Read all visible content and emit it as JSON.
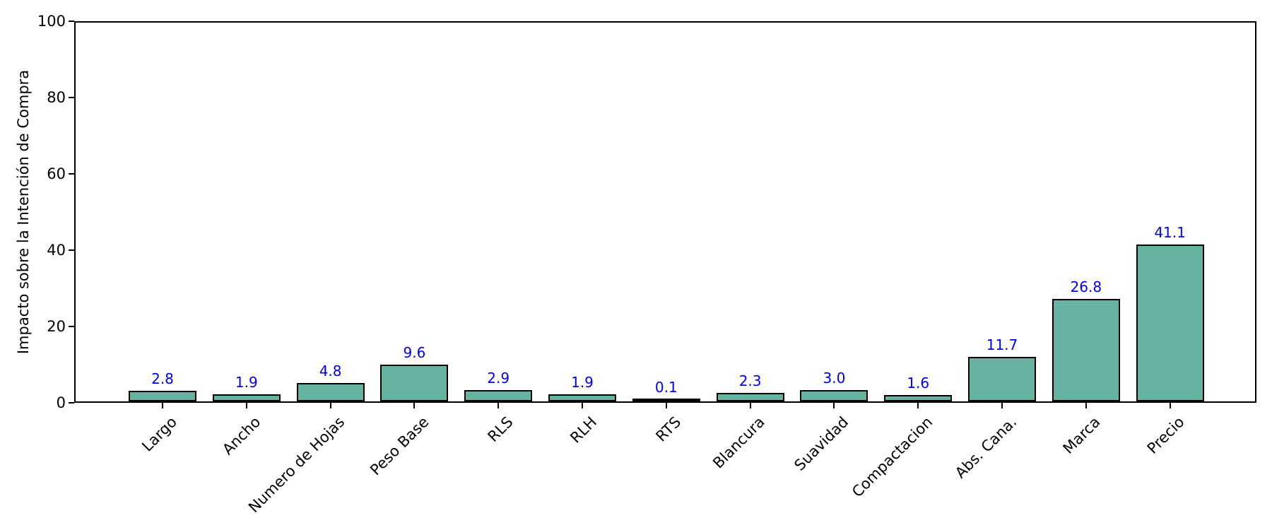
{
  "chart_data": {
    "type": "bar",
    "title": "",
    "xlabel": "",
    "ylabel": "Impacto sobre la Intención de Compra",
    "categories": [
      "Largo",
      "Ancho",
      "Numero de Hojas",
      "Peso Base",
      "RLS",
      "RLH",
      "RTS",
      "Blancura",
      "Suavidad",
      "Compactacion",
      "Abs. Cana.",
      "Marca",
      "Precio"
    ],
    "values": [
      2.8,
      1.9,
      4.8,
      9.6,
      2.9,
      1.9,
      0.1,
      2.3,
      3.0,
      1.6,
      11.7,
      26.8,
      41.1
    ],
    "value_labels": [
      "2.8",
      "1.9",
      "4.8",
      "9.6",
      "2.9",
      "1.9",
      "0.1",
      "2.3",
      "3.0",
      "1.6",
      "11.7",
      "26.8",
      "41.1"
    ],
    "ylim": [
      0,
      100
    ],
    "yticks": [
      0,
      20,
      40,
      60,
      80,
      100
    ],
    "ytick_labels": [
      "0",
      "20",
      "40",
      "60",
      "80",
      "100"
    ],
    "x_tick_rotation_deg": 45,
    "grid": false,
    "legend": "none",
    "colors": {
      "bar_fill": "#67b3a1",
      "bar_edge": "#000000",
      "value_label": "#0000ee",
      "axis": "#000000",
      "tick_label": "#000000",
      "background": "#ffffff"
    }
  }
}
